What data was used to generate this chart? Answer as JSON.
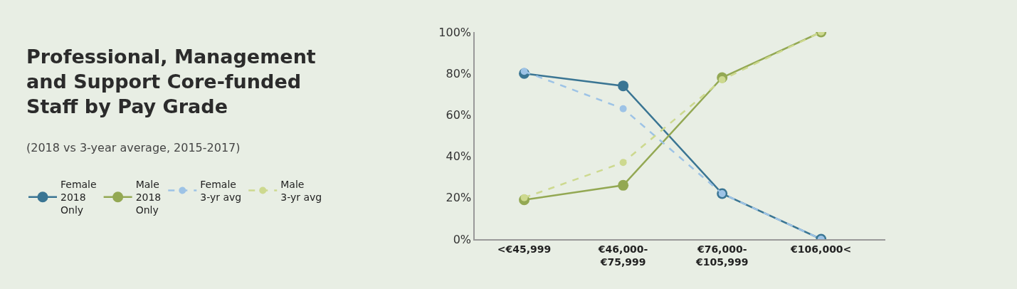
{
  "chart_data": {
    "type": "line",
    "title": "Professional, Management\nand Support Core-funded\nStaff by Pay Grade",
    "subtitle": "(2018 vs 3-year average, 2015-2017)",
    "categories": [
      "<€45,999",
      "€46,000-\n€75,999",
      "€76,000-\n€105,999",
      "€106,000<"
    ],
    "series": [
      {
        "name": "Female\n2018\nOnly",
        "color": "#3a7593",
        "values": [
          80,
          74,
          22,
          0
        ],
        "line_style": "solid"
      },
      {
        "name": "Male\n2018\nOnly",
        "color": "#93a853",
        "values": [
          19,
          26,
          78,
          100
        ],
        "line_style": "solid"
      },
      {
        "name": "Female\n3-yr avg",
        "color": "#9dc3e6",
        "values": [
          81,
          63,
          22,
          0
        ],
        "line_style": "dashed"
      },
      {
        "name": "Male\n3-yr avg",
        "color": "#cdd98f",
        "values": [
          20,
          37,
          77,
          100
        ],
        "line_style": "dashed"
      }
    ],
    "ylim": [
      0,
      100
    ],
    "yticks": [
      {
        "value": 0,
        "label": "0%"
      },
      {
        "value": 20,
        "label": "20%"
      },
      {
        "value": 40,
        "label": "40%"
      },
      {
        "value": 60,
        "label": "60%"
      },
      {
        "value": 80,
        "label": "80%"
      },
      {
        "value": 100,
        "label": "100%"
      }
    ],
    "grid": false,
    "legend": "left",
    "marker": "circle"
  }
}
